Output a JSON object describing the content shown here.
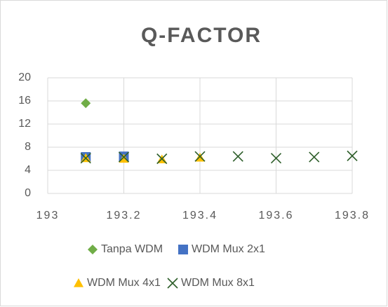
{
  "chart_data": {
    "type": "scatter",
    "title": "Q-FACTOR",
    "series": [
      {
        "name": "Tanpa WDM",
        "color": "#70ad47",
        "marker": "diamond",
        "x": [
          193.1
        ],
        "values": [
          15.6
        ]
      },
      {
        "name": "WDM Mux 2x1",
        "color": "#4472c4",
        "marker": "square",
        "x": [
          193.1,
          193.2
        ],
        "values": [
          6.3,
          6.4
        ]
      },
      {
        "name": "WDM Mux 4x1",
        "color": "#ffc000",
        "marker": "triangle",
        "x": [
          193.1,
          193.2,
          193.3,
          193.4
        ],
        "values": [
          6.1,
          6.0,
          5.9,
          6.2
        ]
      },
      {
        "name": "WDM Mux 8x1",
        "color": "#2e5e2a",
        "marker": "x",
        "x": [
          193.1,
          193.2,
          193.3,
          193.4,
          193.5,
          193.6,
          193.7,
          193.8
        ],
        "values": [
          6.1,
          6.3,
          6.0,
          6.4,
          6.4,
          6.1,
          6.3,
          6.5
        ]
      }
    ],
    "xlim": [
      193,
      193.8
    ],
    "xticks": [
      193,
      193.2,
      193.4,
      193.6,
      193.8
    ],
    "ylim": [
      0,
      20
    ],
    "yticks": [
      0,
      4,
      8,
      12,
      16,
      20
    ],
    "grid": true,
    "legend": "bottom"
  }
}
